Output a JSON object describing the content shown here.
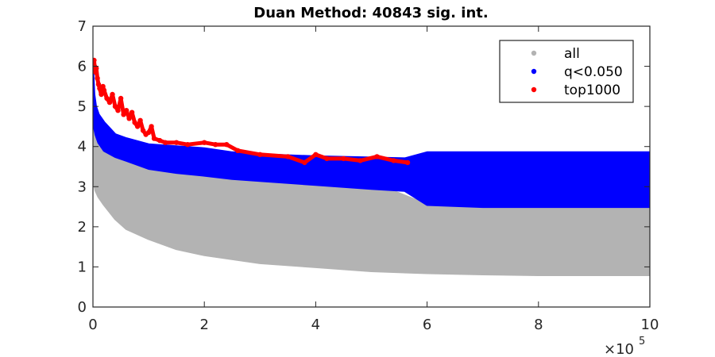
{
  "chart_data": {
    "type": "scatter",
    "title": "Duan Method: 40843 sig. int.",
    "xlabel": "",
    "ylabel": "",
    "xlim": [
      0,
      1000000
    ],
    "ylim": [
      0,
      7
    ],
    "x_ticks": [
      0,
      200000,
      400000,
      600000,
      800000,
      1000000
    ],
    "x_tick_labels": [
      "0",
      "2",
      "4",
      "6",
      "8",
      "10"
    ],
    "x_exponent_label": "×10",
    "x_exponent_power": "5",
    "y_ticks": [
      0,
      1,
      2,
      3,
      4,
      5,
      6,
      7
    ],
    "y_tick_labels": [
      "0",
      "1",
      "2",
      "3",
      "4",
      "5",
      "6",
      "7"
    ],
    "legend_position": "top-right",
    "grid": false,
    "series": [
      {
        "name": "all",
        "color": "#b3b3b3",
        "band": {
          "x": [
            0,
            2000,
            5000,
            10000,
            20000,
            40000,
            60000,
            100000,
            150000,
            200000,
            300000,
            400000,
            500000,
            600000,
            700000,
            800000,
            900000,
            1000000
          ],
          "upper": [
            5.3,
            4.6,
            4.3,
            4.1,
            3.9,
            3.75,
            3.65,
            3.45,
            3.35,
            3.28,
            3.2,
            3.15,
            3.1,
            2.55,
            2.5,
            2.5,
            2.5,
            2.5
          ],
          "lower": [
            3.6,
            3.1,
            2.9,
            2.75,
            2.55,
            2.2,
            1.95,
            1.7,
            1.45,
            1.3,
            1.1,
            1.0,
            0.9,
            0.85,
            0.82,
            0.8,
            0.8,
            0.8
          ]
        }
      },
      {
        "name": "q<0.050",
        "color": "#0000ff",
        "band": {
          "x": [
            0,
            2000,
            5000,
            10000,
            20000,
            40000,
            60000,
            100000,
            150000,
            200000,
            250000,
            300000,
            400000,
            500000,
            560000,
            600000,
            700000,
            800000,
            900000,
            1000000
          ],
          "upper": [
            5.9,
            5.3,
            5.0,
            4.8,
            4.6,
            4.3,
            4.2,
            4.05,
            4.0,
            3.95,
            3.85,
            3.8,
            3.75,
            3.72,
            3.7,
            3.85,
            3.85,
            3.85,
            3.85,
            3.85
          ],
          "lower": [
            4.9,
            4.5,
            4.3,
            4.1,
            3.9,
            3.75,
            3.65,
            3.45,
            3.35,
            3.28,
            3.2,
            3.15,
            3.05,
            2.95,
            2.9,
            2.55,
            2.5,
            2.5,
            2.5,
            2.5
          ]
        }
      },
      {
        "name": "top1000",
        "color": "#ff0000",
        "points": [
          [
            2000,
            6.15
          ],
          [
            3000,
            6.0
          ],
          [
            5000,
            5.85
          ],
          [
            6000,
            5.95
          ],
          [
            8000,
            5.7
          ],
          [
            10000,
            5.55
          ],
          [
            12000,
            5.45
          ],
          [
            15000,
            5.3
          ],
          [
            18000,
            5.5
          ],
          [
            20000,
            5.4
          ],
          [
            25000,
            5.2
          ],
          [
            30000,
            5.1
          ],
          [
            35000,
            5.3
          ],
          [
            40000,
            5.0
          ],
          [
            45000,
            4.9
          ],
          [
            50000,
            5.2
          ],
          [
            55000,
            4.8
          ],
          [
            60000,
            4.9
          ],
          [
            65000,
            4.7
          ],
          [
            70000,
            4.85
          ],
          [
            75000,
            4.6
          ],
          [
            80000,
            4.5
          ],
          [
            85000,
            4.65
          ],
          [
            90000,
            4.4
          ],
          [
            95000,
            4.3
          ],
          [
            100000,
            4.35
          ],
          [
            105000,
            4.5
          ],
          [
            110000,
            4.2
          ],
          [
            120000,
            4.15
          ],
          [
            130000,
            4.1
          ],
          [
            150000,
            4.1
          ],
          [
            170000,
            4.05
          ],
          [
            200000,
            4.1
          ],
          [
            220000,
            4.05
          ],
          [
            240000,
            4.05
          ],
          [
            260000,
            3.9
          ],
          [
            300000,
            3.8
          ],
          [
            350000,
            3.75
          ],
          [
            380000,
            3.6
          ],
          [
            400000,
            3.8
          ],
          [
            420000,
            3.7
          ],
          [
            450000,
            3.7
          ],
          [
            480000,
            3.65
          ],
          [
            510000,
            3.75
          ],
          [
            540000,
            3.65
          ],
          [
            565000,
            3.6
          ]
        ]
      }
    ]
  }
}
